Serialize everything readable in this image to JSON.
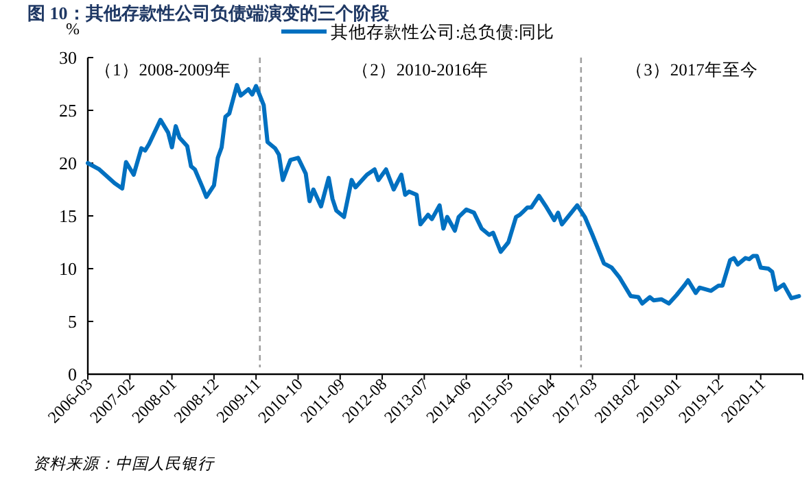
{
  "chart_data": {
    "type": "line",
    "title": "图 10：其他存款性公司负债端演变的三个阶段",
    "ylabel": "%",
    "annotations": [
      "（1）2008-2009年",
      "（2）2010-2016年",
      "（3）2017年至今",
      "资料来源：中国人民银行"
    ],
    "x": [
      "2006-03",
      "2006-06",
      "2006-10",
      "2006-12",
      "2007-01",
      "2007-03",
      "2007-05",
      "2007-06",
      "2007-07",
      "2007-10",
      "2007-12",
      "2008-01",
      "2008-02",
      "2008-03",
      "2008-05",
      "2008-06",
      "2008-07",
      "2008-09",
      "2008-10",
      "2008-12",
      "2009-01",
      "2009-02",
      "2009-03",
      "2009-04",
      "2009-06",
      "2009-07",
      "2009-09",
      "2009-10",
      "2009-11",
      "2009-12",
      "2010-01",
      "2010-02",
      "2010-04",
      "2010-05",
      "2010-06",
      "2010-08",
      "2010-10",
      "2010-12",
      "2011-01",
      "2011-02",
      "2011-04",
      "2011-06",
      "2011-07",
      "2011-08",
      "2011-10",
      "2011-12",
      "2012-01",
      "2012-04",
      "2012-06",
      "2012-07",
      "2012-09",
      "2012-11",
      "2013-01",
      "2013-02",
      "2013-03",
      "2013-05",
      "2013-06",
      "2013-08",
      "2013-09",
      "2013-11",
      "2013-12",
      "2014-01",
      "2014-03",
      "2014-04",
      "2014-06",
      "2014-08",
      "2014-10",
      "2014-12",
      "2015-01",
      "2015-03",
      "2015-05",
      "2015-07",
      "2015-08",
      "2015-10",
      "2015-11",
      "2016-01",
      "2016-03",
      "2016-05",
      "2016-06",
      "2016-07",
      "2016-11",
      "2017-01",
      "2017-03",
      "2017-06",
      "2017-08",
      "2017-10",
      "2017-11",
      "2018-01",
      "2018-03",
      "2018-04",
      "2018-06",
      "2018-07",
      "2018-09",
      "2018-11",
      "2019-01",
      "2019-03",
      "2019-04",
      "2019-06",
      "2019-07",
      "2019-10",
      "2019-12",
      "2020-01",
      "2020-03",
      "2020-04",
      "2020-05",
      "2020-07",
      "2020-08",
      "2020-09",
      "2020-10",
      "2020-11",
      "2021-01",
      "2021-02",
      "2021-03",
      "2021-05",
      "2021-07",
      "2021-09"
    ],
    "series": [
      {
        "name": "其他存款性公司:总负债:同比",
        "color": "#0070c0",
        "values": [
          20.0,
          19.4,
          18.1,
          17.6,
          20.1,
          18.9,
          21.4,
          21.2,
          21.8,
          24.1,
          22.9,
          21.5,
          23.5,
          22.4,
          21.6,
          19.7,
          19.4,
          17.7,
          16.8,
          17.9,
          20.5,
          21.5,
          24.4,
          24.7,
          27.4,
          26.4,
          27.0,
          26.5,
          27.3,
          26.4,
          25.5,
          22.0,
          21.4,
          20.8,
          18.4,
          20.3,
          20.5,
          19.0,
          16.4,
          17.5,
          15.9,
          18.6,
          16.6,
          15.5,
          14.9,
          18.4,
          17.7,
          18.9,
          19.4,
          18.4,
          19.4,
          17.5,
          18.9,
          17.0,
          17.3,
          17.0,
          14.2,
          15.1,
          14.7,
          16.0,
          13.8,
          14.9,
          13.6,
          14.9,
          15.6,
          15.3,
          13.8,
          13.2,
          13.4,
          11.6,
          12.5,
          14.9,
          15.1,
          15.8,
          15.8,
          16.9,
          15.8,
          14.6,
          15.3,
          14.2,
          16.0,
          14.9,
          13.2,
          10.5,
          10.1,
          9.2,
          8.6,
          7.4,
          7.3,
          6.7,
          7.3,
          7.0,
          7.1,
          6.7,
          7.5,
          8.4,
          8.9,
          7.7,
          8.2,
          7.9,
          8.4,
          8.4,
          10.8,
          11.0,
          10.4,
          11.0,
          10.9,
          11.2,
          11.2,
          10.1,
          10.0,
          9.7,
          8.0,
          8.5,
          7.2,
          7.4
        ]
      }
    ],
    "xlim": [
      "2006-03",
      "2021-10"
    ],
    "xticks": [
      "2006-03",
      "2007-02",
      "2008-01",
      "2008-12",
      "2009-11",
      "2010-10",
      "2011-09",
      "2012-08",
      "2013-07",
      "2014-06",
      "2015-05",
      "2016-04",
      "2017-03",
      "2018-02",
      "2019-01",
      "2019-12",
      "2020-11",
      {
        "value": "2021-10",
        "label": null
      }
    ],
    "ylim": [
      0,
      30
    ],
    "yticks": [
      0,
      5,
      10,
      15,
      20,
      25,
      30
    ],
    "ref_lines": [
      {
        "axis": "x",
        "value": "2009-12",
        "color": "#a0a0a0",
        "line_style": "dashed"
      },
      {
        "axis": "x",
        "value": "2016-12",
        "color": "#a0a0a0",
        "line_style": "dashed"
      }
    ],
    "legend": "top",
    "grid": false,
    "marker": "none",
    "line_style": "solid"
  }
}
